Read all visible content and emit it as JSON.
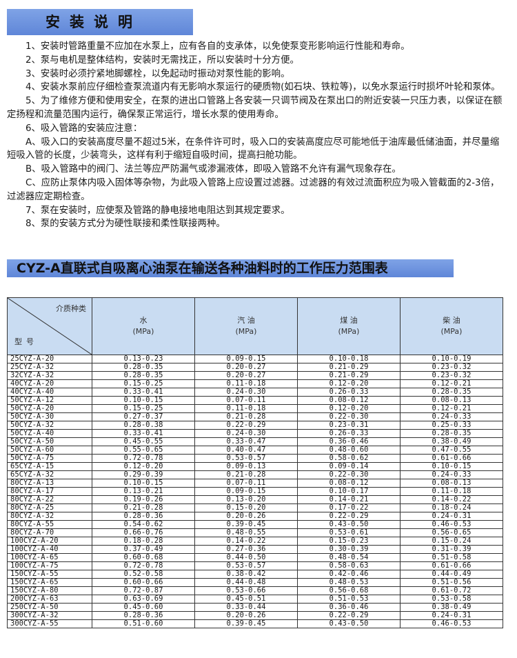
{
  "section1": {
    "title": "安装说明",
    "items": [
      "1、安装时管路重量不应加在水泵上，应有各自的支承体，以免使泵变形影响运行性能和寿命。",
      "2、泵与电机是整体结构，安装时无需找正，所以安装时十分方便。",
      "3、安装时必须拧紧地脚螺栓，以免起动时振动对泵性能的影响。",
      "4、安装水泵前应仔细检查泵流道内有无影响水泵运行的硬质物(如石块、铁粒等)，以免水泵运行时损坏叶轮和泵体。",
      "5、为了维修方便和使用安全，在泵的进出口管路上各安装一只调节阀及在泵出口的附近安装一只压力表，以保证在额定扬程和流量范围内运行，确保泵正常运行，增长水泵的使用寿命。",
      "6、吸入管路的安装应注意：",
      "A、吸入口的安装高度尽量不超过5米，在条件许可时，吸入口的安装高度应尽可能地低于油库最低储油面，并尽量缩短吸入管的长度，少装弯头，这样有利于缩短自吸时间，提高扫舱功能。",
      "B、吸入管路中的阀门、法兰等应严防漏气或渗漏液体，即吸入管路不允许有漏气现象存在。",
      "C、应防止泵体内吸入固体等杂物，为此吸入管路上应设置过滤器。过滤器的有效过流面积应为吸入管截面的2-3倍，过滤器应定期检查。",
      "7、泵在安装时，应使泵及管路的静电接地电阻达到其规定要求。",
      "8、泵的安装方式分为硬性联接和柔性联接两种。"
    ]
  },
  "section2": {
    "title": "CYZ-A直联式自吸离心油泵在输送各种油料时的工作压力范围表"
  },
  "table": {
    "corner_top": "介质种类",
    "corner_bottom": "型号",
    "columns": [
      {
        "name": "水",
        "unit": "(MPa)"
      },
      {
        "name": "汽 油",
        "unit": "(MPa)"
      },
      {
        "name": "煤 油",
        "unit": "(MPa)"
      },
      {
        "name": "柴 油",
        "unit": "(MPa)"
      }
    ],
    "rows": [
      [
        "25CYZ-A-20",
        "0.13-0.23",
        "0.09-0.15",
        "0.10-0.18",
        "0.10-0.19"
      ],
      [
        "25CYZ-A-32",
        "0.28-0.35",
        "0.20-0.27",
        "0.21-0.29",
        "0.23-0.32"
      ],
      [
        "32CYZ-A-32",
        "0.28-0.35",
        "0.20-0.27",
        "0.21-0.29",
        "0.23-0.32"
      ],
      [
        "40CYZ-A-20",
        "0.15-0.25",
        "0.11-0.18",
        "0.12-0.20",
        "0.12-0.21"
      ],
      [
        "40CYZ-A-40",
        "0.33-0.41",
        "0.24-0.30",
        "0.26-0.33",
        "0.28-0.35"
      ],
      [
        "50CYZ-A-12",
        "0.10-0.15",
        "0.07-0.11",
        "0.08-0.12",
        "0.08-0.13"
      ],
      [
        "50CYZ-A-20",
        "0.15-0.25",
        "0.11-0.18",
        "0.12-0.20",
        "0.12-0.21"
      ],
      [
        "50CYZ-A-30",
        "0.27-0.37",
        "0.21-0.28",
        "0.22-0.30",
        "0.24-0.33"
      ],
      [
        "50CYZ-A-32",
        "0.28-0.38",
        "0.22-0.29",
        "0.23-0.31",
        "0.25-0.33"
      ],
      [
        "50CYZ-A-40",
        "0.33-0.41",
        "0.24-0.30",
        "0.26-0.33",
        "0.28-0.35"
      ],
      [
        "50CYZ-A-50",
        "0.45-0.55",
        "0.33-0.47",
        "0.36-0.46",
        "0.38-0.49"
      ],
      [
        "50CYZ-A-60",
        "0.55-0.65",
        "0.40-0.47",
        "0.48-0.60",
        "0.47-0.55"
      ],
      [
        "50CYZ-A-75",
        "0.72-0.78",
        "0.53-0.57",
        "0.58-0.62",
        "0.61-0.66"
      ],
      [
        "65CYZ-A-15",
        "0.12-0.20",
        "0.09-0.13",
        "0.09-0.14",
        "0.10-0.15"
      ],
      [
        "65CYZ-A-32",
        "0.29-0.39",
        "0.21-0.28",
        "0.22-0.30",
        "0.24-0.33"
      ],
      [
        "80CYZ-A-13",
        "0.10-0.15",
        "0.07-0.11",
        "0.08-0.12",
        "0.08-0.13"
      ],
      [
        "80CYZ-A-17",
        "0.13-0.21",
        "0.09-0.15",
        "0.10-0.17",
        "0.11-0.18"
      ],
      [
        "80CYZ-A-22",
        "0.19-0.26",
        "0.13-0.20",
        "0.14-0.21",
        "0.14-0.22"
      ],
      [
        "80CYZ-A-25",
        "0.21-0.28",
        "0.15-0.20",
        "0.17-0.22",
        "0.18-0.24"
      ],
      [
        "80CYZ-A-32",
        "0.28-0.36",
        "0.20-0.26",
        "0.22-0.29",
        "0.24-0.31"
      ],
      [
        "80CYZ-A-55",
        "0.54-0.62",
        "0.39-0.45",
        "0.43-0.50",
        "0.46-0.53"
      ],
      [
        "80CYZ-A-70",
        "0.66-0.76",
        "0.48-0.55",
        "0.53-0.61",
        "0.56-0.65"
      ],
      [
        "100CYZ-A-20",
        "0.18-0.28",
        "0.14-0.22",
        "0.15-0.23",
        "0.15-0.24"
      ],
      [
        "100CYZ-A-40",
        "0.37-0.49",
        "0.27-0.36",
        "0.30-0.39",
        "0.31-0.39"
      ],
      [
        "100CYZ-A-65",
        "0.60-0.68",
        "0.44-0.50",
        "0.48-0.54",
        "0.51-0.58"
      ],
      [
        "100CYZ-A-75",
        "0.72-0.78",
        "0.53-0.57",
        "0.58-0.63",
        "0.61-0.66"
      ],
      [
        "150CYZ-A-55",
        "0.52-0.58",
        "0.38-0.42",
        "0.42-0.46",
        "0.44-0.49"
      ],
      [
        "150CYZ-A-65",
        "0.60-0.66",
        "0.44-0.48",
        "0.48-0.53",
        "0.51-0.56"
      ],
      [
        "150CYZ-A-80",
        "0.72-0.87",
        "0.53-0.66",
        "0.56-0.68",
        "0.61-0.72"
      ],
      [
        "200CYZ-A-63",
        "0.63-0.69",
        "0.45-0.51",
        "0.51-0.53",
        "0.53-0.58"
      ],
      [
        "250CYZ-A-50",
        "0.45-0.60",
        "0.33-0.44",
        "0.36-0.46",
        "0.38-0.49"
      ],
      [
        "300CYZ-A-32",
        "0.28-0.36",
        "0.20-0.26",
        "0.22-0.29",
        "0.24-0.31"
      ],
      [
        "300CYZ-A-55",
        "0.51-0.60",
        "0.39-0.45",
        "0.43-0.50",
        "0.46-0.53"
      ]
    ]
  },
  "colors": {
    "title_bar": "#6f95df",
    "header_bg": "#c9dcf2"
  }
}
